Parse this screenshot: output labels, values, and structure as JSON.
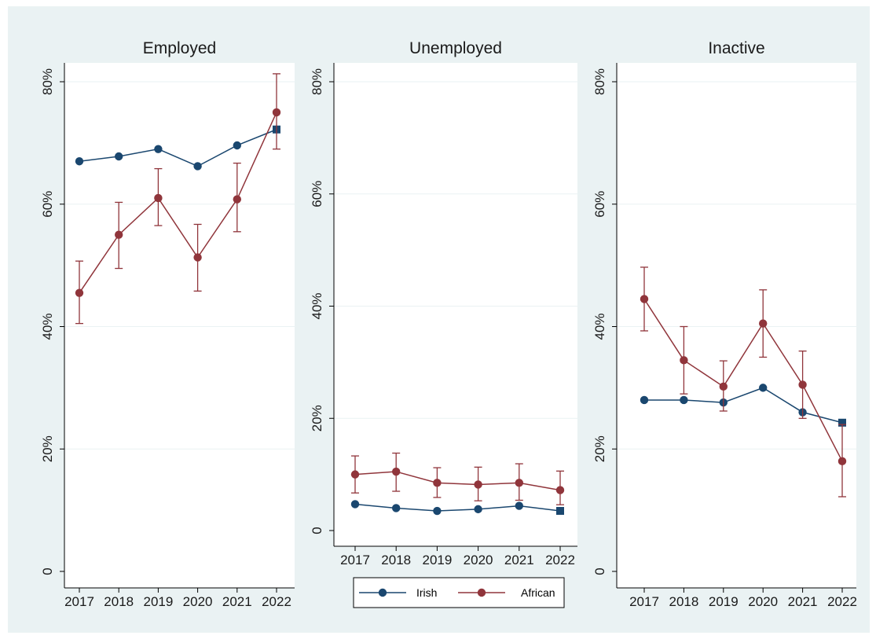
{
  "colors": {
    "background": "#eaf2f3",
    "plot": "#ffffff",
    "grid": "#eaf2f3",
    "irish": "#1a476f",
    "african": "#90353b"
  },
  "legend": {
    "position": "bottom-center",
    "entries": [
      "Irish",
      "African"
    ]
  },
  "chart_data": [
    {
      "type": "line",
      "title": "Employed",
      "x": [
        2017,
        2018,
        2019,
        2020,
        2021,
        2022
      ],
      "ylim": [
        0,
        0.8
      ],
      "yticks": [
        0,
        0.2,
        0.4,
        0.6,
        0.8
      ],
      "ytick_labels": [
        "0",
        "20%",
        "40%",
        "60%",
        "80%"
      ],
      "grid": true,
      "series": [
        {
          "name": "Irish",
          "values": [
            0.67,
            0.678,
            0.69,
            0.662,
            0.696,
            0.722
          ]
        },
        {
          "name": "African",
          "values": [
            0.455,
            0.55,
            0.61,
            0.513,
            0.608,
            0.75
          ],
          "ci_low": [
            0.405,
            0.495,
            0.565,
            0.458,
            0.555,
            0.69
          ],
          "ci_high": [
            0.507,
            0.603,
            0.658,
            0.567,
            0.667,
            0.813
          ]
        }
      ]
    },
    {
      "type": "line",
      "title": "Unemployed",
      "x": [
        2017,
        2018,
        2019,
        2020,
        2021,
        2022
      ],
      "ylim": [
        0,
        0.8
      ],
      "yticks": [
        0,
        0.2,
        0.4,
        0.6,
        0.8
      ],
      "ytick_labels": [
        "0",
        "20%",
        "40%",
        "60%",
        "80%"
      ],
      "grid": true,
      "series": [
        {
          "name": "Irish",
          "values": [
            0.047,
            0.04,
            0.035,
            0.038,
            0.044,
            0.035
          ]
        },
        {
          "name": "African",
          "values": [
            0.1,
            0.105,
            0.085,
            0.082,
            0.085,
            0.072
          ],
          "ci_low": [
            0.067,
            0.07,
            0.059,
            0.053,
            0.054,
            0.046
          ],
          "ci_high": [
            0.133,
            0.138,
            0.112,
            0.113,
            0.119,
            0.106
          ]
        }
      ]
    },
    {
      "type": "line",
      "title": "Inactive",
      "x": [
        2017,
        2018,
        2019,
        2020,
        2021,
        2022
      ],
      "ylim": [
        0,
        0.8
      ],
      "yticks": [
        0,
        0.2,
        0.4,
        0.6,
        0.8
      ],
      "ytick_labels": [
        "0",
        "20%",
        "40%",
        "60%",
        "80%"
      ],
      "grid": true,
      "series": [
        {
          "name": "Irish",
          "values": [
            0.28,
            0.28,
            0.276,
            0.3,
            0.26,
            0.243
          ]
        },
        {
          "name": "African",
          "values": [
            0.445,
            0.345,
            0.302,
            0.405,
            0.305,
            0.18
          ],
          "ci_low": [
            0.393,
            0.29,
            0.262,
            0.35,
            0.25,
            0.122
          ],
          "ci_high": [
            0.497,
            0.4,
            0.344,
            0.46,
            0.36,
            0.24
          ]
        }
      ]
    }
  ]
}
